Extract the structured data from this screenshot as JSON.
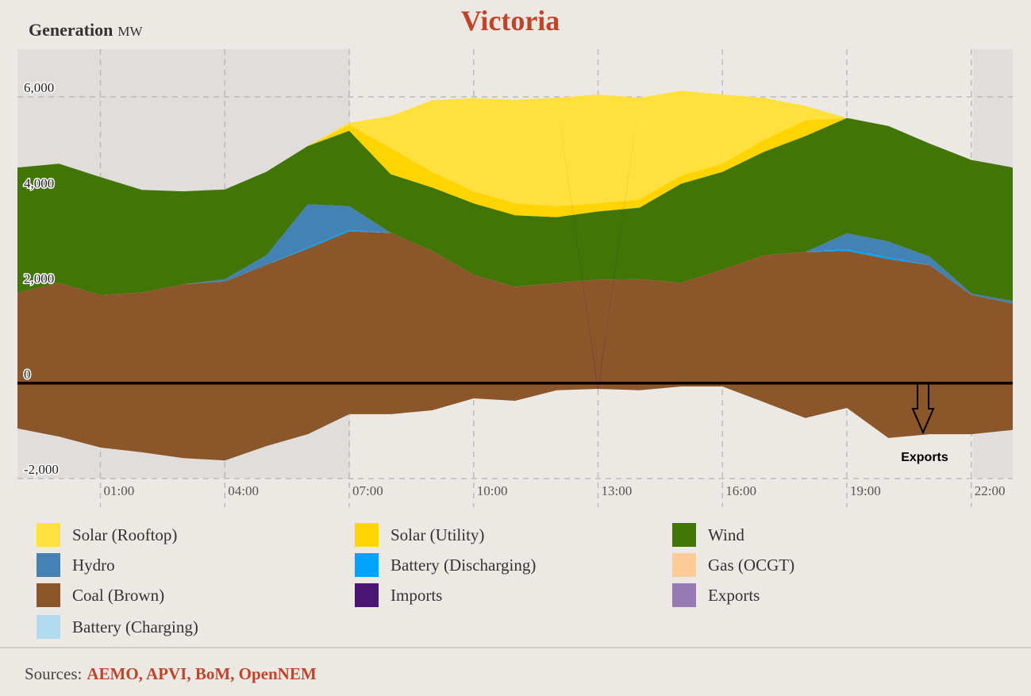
{
  "chart_data": {
    "type": "stacked_area",
    "title": "Victoria",
    "y_label": "Generation",
    "y_unit": "MW",
    "annotation": "Exports",
    "source_prefix": "Sources:",
    "sources": "AEMO, APVI, BoM, OpenNEM",
    "x": [
      -1,
      0,
      1,
      2,
      3,
      4,
      5,
      6,
      7,
      8,
      9,
      10,
      11,
      12,
      13,
      14,
      15,
      16,
      17,
      18,
      19,
      20,
      21,
      22,
      23
    ],
    "xlim": [
      -1,
      23
    ],
    "xticks": [
      {
        "value": 1,
        "label": "01:00"
      },
      {
        "value": 4,
        "label": "04:00"
      },
      {
        "value": 7,
        "label": "07:00"
      },
      {
        "value": 10,
        "label": "10:00"
      },
      {
        "value": 13,
        "label": "13:00"
      },
      {
        "value": 16,
        "label": "16:00"
      },
      {
        "value": 19,
        "label": "19:00"
      },
      {
        "value": 22,
        "label": "22:00"
      }
    ],
    "ylim": [
      -2000,
      7000
    ],
    "yticks": [
      {
        "value": -2000,
        "label": "-2,000"
      },
      0,
      {
        "value": 2000,
        "label": "2,000"
      },
      {
        "value": 4000,
        "label": "4,000"
      },
      {
        "value": 6000,
        "label": "6,000"
      }
    ],
    "grid": true,
    "series": [
      {
        "name": "Solar (Rooftop)",
        "color": "#ffe03d",
        "values": [
          0,
          0,
          0,
          0,
          0,
          0,
          0,
          0,
          50,
          670,
          1500,
          1950,
          2170,
          2270,
          2280,
          2130,
          1780,
          1450,
          880,
          300,
          0,
          0,
          0,
          0,
          0
        ]
      },
      {
        "name": "Solar (Utility)",
        "color": "#ffd400",
        "values": [
          0,
          0,
          0,
          0,
          0,
          0,
          0,
          0,
          120,
          550,
          330,
          250,
          250,
          230,
          170,
          170,
          170,
          170,
          250,
          330,
          0,
          0,
          0,
          0,
          0
        ]
      },
      {
        "name": "Wind",
        "color": "#417505",
        "values": [
          2620,
          2500,
          2470,
          2150,
          1950,
          1880,
          1750,
          1220,
          1580,
          1230,
          1330,
          1500,
          1500,
          1380,
          1430,
          1500,
          2080,
          2050,
          2170,
          2430,
          2420,
          2420,
          2370,
          2800,
          2800
        ]
      },
      {
        "name": "Hydro",
        "color": "#4582b4",
        "values": [
          0,
          0,
          0,
          0,
          0,
          50,
          200,
          900,
          500,
          0,
          0,
          0,
          0,
          0,
          0,
          0,
          0,
          0,
          0,
          0,
          330,
          330,
          180,
          30,
          50
        ]
      },
      {
        "name": "Battery (Discharging)",
        "color": "#00a2fa",
        "values": [
          0,
          0,
          0,
          0,
          0,
          0,
          0,
          30,
          30,
          0,
          0,
          0,
          0,
          0,
          0,
          0,
          0,
          0,
          0,
          0,
          40,
          40,
          0,
          0,
          0
        ]
      },
      {
        "name": "Gas (OCGT)",
        "color": "#fdcb97",
        "values": [
          0,
          0,
          0,
          0,
          0,
          0,
          0,
          0,
          0,
          0,
          0,
          0,
          0,
          0,
          0,
          0,
          0,
          0,
          0,
          0,
          0,
          0,
          0,
          0,
          0
        ]
      },
      {
        "name": "Coal (Brown)",
        "color": "#8b572a",
        "values": [
          1900,
          2100,
          1850,
          1900,
          2070,
          2130,
          2480,
          2820,
          3180,
          3150,
          2770,
          2270,
          2020,
          2100,
          2170,
          2180,
          2100,
          2380,
          2680,
          2750,
          2770,
          2600,
          2470,
          1850,
          1670
        ]
      },
      {
        "name": "Imports",
        "color": "#4a1574",
        "values": [
          0,
          0,
          0,
          0,
          0,
          0,
          0,
          0,
          0,
          0,
          0,
          0,
          0,
          0,
          -30,
          0,
          0,
          0,
          0,
          0,
          0,
          0,
          0,
          0,
          0
        ]
      },
      {
        "name": "Exports",
        "color": "#977ab4",
        "area_color": "#8b572a",
        "values": [
          -950,
          -1120,
          -1350,
          -1450,
          -1570,
          -1620,
          -1320,
          -1070,
          -650,
          -650,
          -570,
          -320,
          -370,
          -150,
          -120,
          -150,
          -70,
          -70,
          -400,
          -730,
          -520,
          -1150,
          -1070,
          -1070,
          -980
        ]
      },
      {
        "name": "Battery (Charging)",
        "color": "#b3dbef",
        "values": [
          0,
          0,
          0,
          0,
          0,
          0,
          0,
          0,
          0,
          0,
          0,
          0,
          0,
          0,
          0,
          0,
          0,
          0,
          0,
          0,
          0,
          0,
          0,
          0,
          0
        ]
      }
    ]
  }
}
